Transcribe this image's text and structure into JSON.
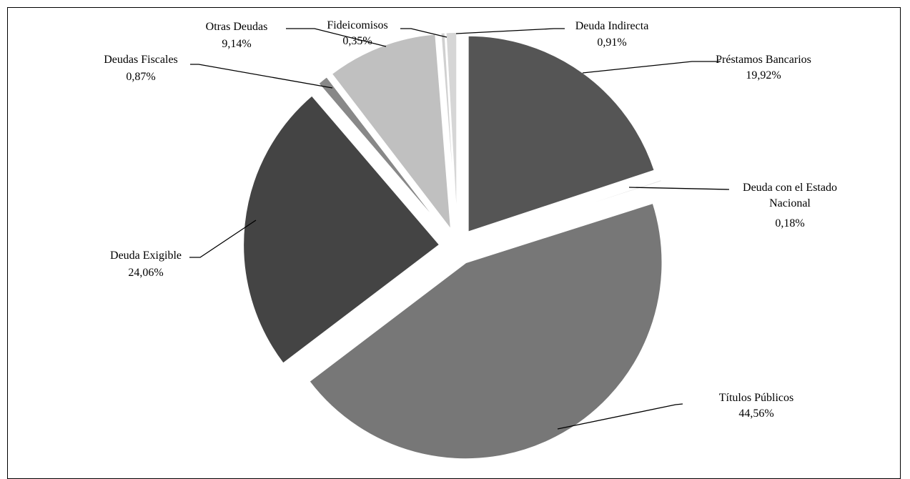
{
  "chart_data": {
    "type": "pie",
    "title": "",
    "slices": [
      {
        "name": "Préstamos Bancarios",
        "value": 19.92,
        "label": "19,92%",
        "color": "#555555"
      },
      {
        "name": "Deuda con el Estado Nacional",
        "value": 0.18,
        "label": "0,18%",
        "color": "#e6e6e6"
      },
      {
        "name": "Títulos Públicos",
        "value": 44.56,
        "label": "44,56%",
        "color": "#777777"
      },
      {
        "name": "Deuda Exigible",
        "value": 24.06,
        "label": "24,06%",
        "color": "#444444"
      },
      {
        "name": "Deudas Fiscales",
        "value": 0.87,
        "label": "0,87%",
        "color": "#888888"
      },
      {
        "name": "Otras Deudas",
        "value": 9.14,
        "label": "9,14%",
        "color": "#c0c0c0"
      },
      {
        "name": "Fideicomisos",
        "value": 0.35,
        "label": "0,35%",
        "color": "#d0d0d0"
      },
      {
        "name": "Deuda Indirecta",
        "value": 0.91,
        "label": "0,91%",
        "color": "#d6d6d6"
      }
    ],
    "legend": "none",
    "data_labels": "outside-with-leaders"
  }
}
